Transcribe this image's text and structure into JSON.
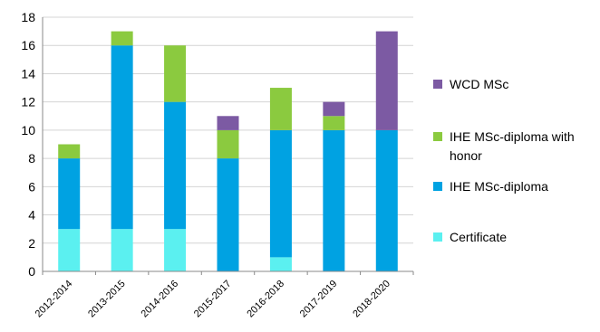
{
  "chart_data": {
    "type": "bar",
    "stacked": true,
    "title": "",
    "xlabel": "",
    "ylabel": "",
    "categories": [
      "2012-2014",
      "2013-2015",
      "2014-2016",
      "2015-2017",
      "2016-2018",
      "2017-2019",
      "2018-2020"
    ],
    "series": [
      {
        "name": "Certificate",
        "color": "#5BF0F0",
        "values": [
          3,
          3,
          3,
          0,
          1,
          0,
          0
        ]
      },
      {
        "name": "IHE MSc-diploma",
        "color": "#00A2E2",
        "values": [
          5,
          13,
          9,
          8,
          9,
          10,
          10
        ]
      },
      {
        "name": "IHE MSc-diploma with honor",
        "color": "#8BCA3F",
        "values": [
          1,
          1,
          4,
          2,
          3,
          1,
          0
        ]
      },
      {
        "name": "WCD MSc",
        "color": "#7C5AA3",
        "values": [
          0,
          0,
          0,
          1,
          0,
          1,
          7
        ]
      }
    ],
    "ylim": [
      0,
      18
    ],
    "yticks": [
      0,
      2,
      4,
      6,
      8,
      10,
      12,
      14,
      16,
      18
    ],
    "grid": true,
    "legend_position": "right",
    "legend_order": [
      "WCD MSc",
      "IHE MSc-diploma with honor",
      "IHE MSc-diploma",
      "Certificate"
    ],
    "legend_lines": {
      "WCD MSc": [
        "WCD MSc"
      ],
      "IHE MSc-diploma with honor": [
        "IHE MSc-diploma with",
        "honor"
      ],
      "IHE MSc-diploma": [
        "IHE MSc-diploma"
      ],
      "Certificate": [
        "Certificate"
      ]
    }
  }
}
